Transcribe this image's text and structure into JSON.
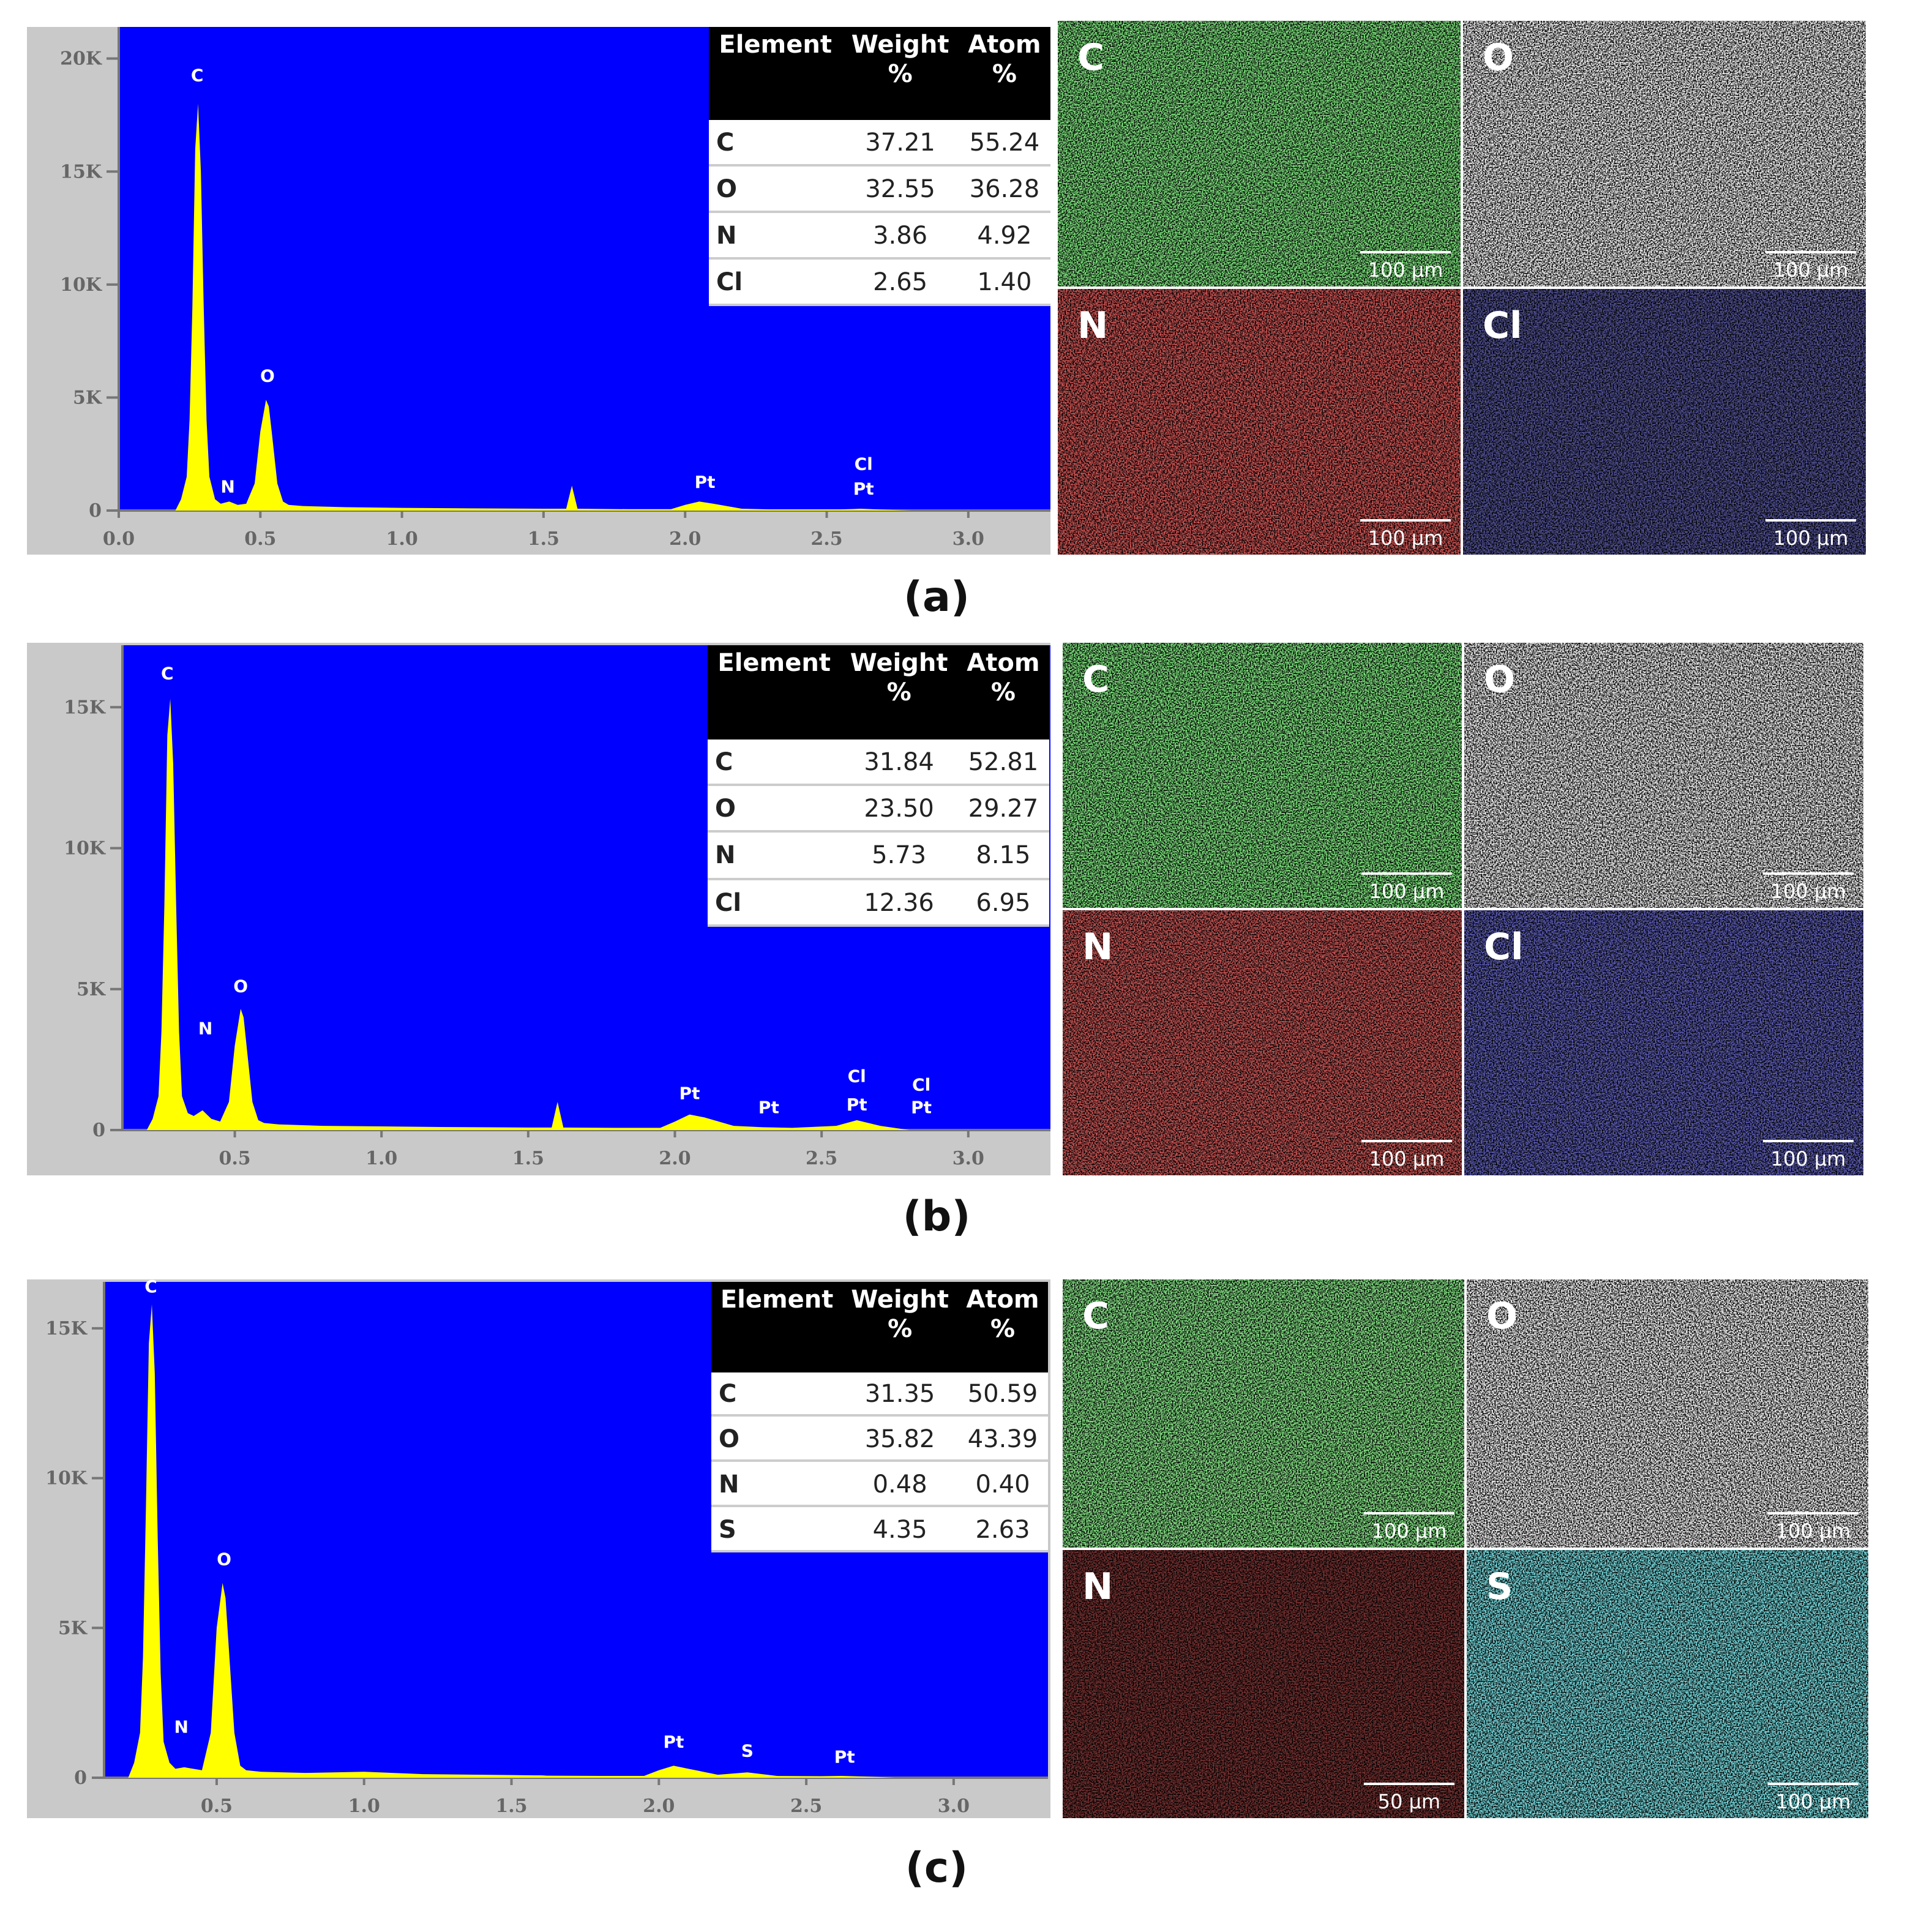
{
  "chart_data": [
    {
      "type": "area",
      "color": "#ffff00",
      "x": [
        0.2,
        0.22,
        0.24,
        0.25,
        0.26,
        0.27,
        0.28,
        0.29,
        0.3,
        0.31,
        0.32,
        0.34,
        0.36,
        0.39,
        0.42,
        0.45,
        0.48,
        0.5,
        0.52,
        0.53,
        0.54,
        0.56,
        0.58,
        0.6,
        0.65,
        0.8,
        1.0,
        1.2,
        1.5,
        1.58,
        1.6,
        1.62,
        1.8,
        1.95,
        2.0,
        2.05,
        2.1,
        2.2,
        2.3,
        2.4,
        2.55,
        2.62,
        2.7,
        2.8
      ],
      "values": [
        0,
        500,
        1500,
        4000,
        9000,
        16000,
        18000,
        15000,
        9000,
        4000,
        1500,
        500,
        300,
        400,
        250,
        300,
        1200,
        3500,
        4900,
        4600,
        3500,
        1200,
        400,
        250,
        200,
        150,
        120,
        100,
        80,
        80,
        1100,
        80,
        60,
        60,
        250,
        400,
        300,
        80,
        50,
        50,
        50,
        80,
        40,
        0
      ],
      "xlim": [
        0,
        3.29
      ],
      "xticks": [
        {
          "value": 0,
          "label": "0.0"
        },
        0.5,
        {
          "value": 1,
          "label": "1.0"
        },
        1.5,
        {
          "value": 2,
          "label": "2.0"
        },
        2.5,
        {
          "value": 3,
          "label": "3.0"
        }
      ],
      "ylim": [
        0,
        21400
      ],
      "yticks": [
        0,
        {
          "value": 5000,
          "label": "5K"
        },
        {
          "value": 10000,
          "label": "10K"
        },
        {
          "value": 15000,
          "label": "15K"
        },
        {
          "value": 20000,
          "label": "20K"
        }
      ],
      "annotations": [
        {
          "text": "C",
          "x": 0.277,
          "y": 19000
        },
        {
          "text": "N",
          "x": 0.385,
          "y": 800
        },
        {
          "text": "O",
          "x": 0.525,
          "y": 5700
        },
        {
          "text": "Pt",
          "x": 2.07,
          "y": 1000
        },
        {
          "text": "Cl",
          "x": 2.63,
          "y": 1800
        },
        {
          "text": "Pt",
          "x": 2.63,
          "y": 700
        }
      ]
    },
    {
      "type": "area",
      "color": "#ffff00",
      "x": [
        0.2,
        0.22,
        0.24,
        0.25,
        0.26,
        0.27,
        0.28,
        0.29,
        0.3,
        0.31,
        0.32,
        0.34,
        0.36,
        0.39,
        0.42,
        0.45,
        0.48,
        0.5,
        0.52,
        0.53,
        0.54,
        0.56,
        0.58,
        0.6,
        0.65,
        0.8,
        1.0,
        1.2,
        1.5,
        1.58,
        1.6,
        1.62,
        1.8,
        1.95,
        2.0,
        2.05,
        2.1,
        2.2,
        2.3,
        2.4,
        2.55,
        2.62,
        2.7,
        2.8
      ],
      "values": [
        0,
        400,
        1200,
        3500,
        8000,
        14000,
        15300,
        13000,
        8000,
        3500,
        1200,
        600,
        500,
        700,
        400,
        300,
        1000,
        3000,
        4300,
        4000,
        3000,
        1000,
        350,
        250,
        200,
        150,
        130,
        110,
        90,
        90,
        1000,
        90,
        80,
        80,
        300,
        550,
        450,
        150,
        100,
        80,
        150,
        350,
        150,
        0
      ],
      "xlim": [
        0.117,
        3.28
      ],
      "xticks": [
        0.5,
        {
          "value": 1,
          "label": "1.0"
        },
        1.5,
        {
          "value": 2,
          "label": "2.0"
        },
        2.5,
        {
          "value": 3,
          "label": "3.0"
        }
      ],
      "ylim": [
        0,
        17200
      ],
      "yticks": [
        0,
        {
          "value": 5000,
          "label": "5K"
        },
        {
          "value": 10000,
          "label": "10K"
        },
        {
          "value": 15000,
          "label": "15K"
        }
      ],
      "annotations": [
        {
          "text": "C",
          "x": 0.27,
          "y": 16000
        },
        {
          "text": "N",
          "x": 0.4,
          "y": 3400
        },
        {
          "text": "O",
          "x": 0.52,
          "y": 4900
        },
        {
          "text": "Pt",
          "x": 2.05,
          "y": 1100
        },
        {
          "text": "Pt",
          "x": 2.32,
          "y": 600
        },
        {
          "text": "Cl",
          "x": 2.62,
          "y": 1700
        },
        {
          "text": "Pt",
          "x": 2.62,
          "y": 700
        },
        {
          "text": "Cl",
          "x": 2.84,
          "y": 1400
        },
        {
          "text": "Pt",
          "x": 2.84,
          "y": 600
        }
      ]
    },
    {
      "type": "area",
      "color": "#ffff00",
      "x": [
        0.2,
        0.22,
        0.24,
        0.25,
        0.26,
        0.27,
        0.28,
        0.29,
        0.3,
        0.31,
        0.32,
        0.34,
        0.36,
        0.39,
        0.42,
        0.45,
        0.48,
        0.5,
        0.52,
        0.53,
        0.54,
        0.56,
        0.58,
        0.6,
        0.65,
        0.8,
        1.0,
        1.2,
        1.5,
        1.58,
        1.6,
        1.62,
        1.8,
        1.95,
        2.0,
        2.05,
        2.1,
        2.2,
        2.3,
        2.4,
        2.55,
        2.62,
        2.7,
        2.8
      ],
      "values": [
        0,
        500,
        1500,
        4000,
        9000,
        14500,
        15800,
        13500,
        8000,
        3500,
        1200,
        500,
        300,
        350,
        300,
        250,
        1500,
        5000,
        6500,
        6000,
        4500,
        1500,
        400,
        250,
        200,
        160,
        200,
        120,
        90,
        80,
        80,
        70,
        60,
        60,
        250,
        400,
        300,
        100,
        180,
        60,
        50,
        60,
        40,
        0
      ],
      "xlim": [
        0.118,
        3.32
      ],
      "xticks": [
        0.5,
        {
          "value": 1,
          "label": "1.0"
        },
        1.5,
        {
          "value": 2,
          "label": "2.0"
        },
        2.5,
        {
          "value": 3,
          "label": "3.0"
        }
      ],
      "ylim": [
        0,
        16550
      ],
      "yticks": [
        0,
        {
          "value": 5000,
          "label": "5K"
        },
        {
          "value": 10000,
          "label": "10K"
        },
        {
          "value": 15000,
          "label": "15K"
        }
      ],
      "annotations": [
        {
          "text": "C",
          "x": 0.277,
          "y": 16200
        },
        {
          "text": "N",
          "x": 0.38,
          "y": 1500
        },
        {
          "text": "O",
          "x": 0.525,
          "y": 7100
        },
        {
          "text": "Pt",
          "x": 2.05,
          "y": 1000
        },
        {
          "text": "S",
          "x": 2.3,
          "y": 700
        },
        {
          "text": "Pt",
          "x": 2.63,
          "y": 500
        }
      ]
    }
  ],
  "tables": [
    {
      "header": [
        "Element",
        "Weight %",
        "Atom %"
      ],
      "rows": [
        [
          "C",
          "37.21",
          "55.24"
        ],
        [
          "O",
          "32.55",
          "36.28"
        ],
        [
          "N",
          "3.86",
          "4.92"
        ],
        [
          "Cl",
          "2.65",
          "1.40"
        ]
      ]
    },
    {
      "header": [
        "Element",
        "Weight %",
        "Atom %"
      ],
      "rows": [
        [
          "C",
          "31.84",
          "52.81"
        ],
        [
          "O",
          "23.50",
          "29.27"
        ],
        [
          "N",
          "5.73",
          "8.15"
        ],
        [
          "Cl",
          "12.36",
          "6.95"
        ]
      ]
    },
    {
      "header": [
        "Element",
        "Weight %",
        "Atom %"
      ],
      "rows": [
        [
          "C",
          "31.35",
          "50.59"
        ],
        [
          "O",
          "35.82",
          "43.39"
        ],
        [
          "N",
          "0.48",
          "0.40"
        ],
        [
          "S",
          "4.35",
          "2.63"
        ]
      ]
    }
  ],
  "maps": [
    [
      {
        "element": "C",
        "scale_bar": "100 μm",
        "color": "#38d038"
      },
      {
        "element": "O",
        "scale_bar": "100 μm",
        "color": "#e8e8e8"
      },
      {
        "element": "N",
        "scale_bar": "100 μm",
        "color": "#a81818"
      },
      {
        "element": "Cl",
        "scale_bar": "100 μm",
        "color": "#161650"
      }
    ],
    [
      {
        "element": "C",
        "scale_bar": "100 μm",
        "color": "#38d038"
      },
      {
        "element": "O",
        "scale_bar": "100 μm",
        "color": "#e0e0e0"
      },
      {
        "element": "N",
        "scale_bar": "100 μm",
        "color": "#981818"
      },
      {
        "element": "Cl",
        "scale_bar": "100 μm",
        "color": "#1c1c78"
      }
    ],
    [
      {
        "element": "C",
        "scale_bar": "100 μm",
        "color": "#40d040"
      },
      {
        "element": "O",
        "scale_bar": "100 μm",
        "color": "#e8e8e8"
      },
      {
        "element": "N",
        "scale_bar": "50 μm",
        "color": "#300808"
      },
      {
        "element": "S",
        "scale_bar": "100 μm",
        "color": "#30b8c0"
      }
    ]
  ],
  "panel_labels": [
    "(a)",
    "(b)",
    "(c)"
  ]
}
